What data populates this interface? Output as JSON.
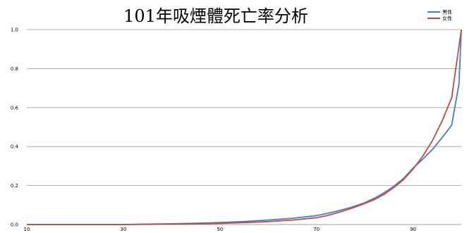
{
  "chart_data": {
    "type": "line",
    "title": "101年吸煙體死亡率分析",
    "xlabel": "",
    "ylabel": "",
    "xlim": [
      10,
      100
    ],
    "ylim": [
      0,
      1.0
    ],
    "x_ticks": [
      10,
      30,
      50,
      70,
      90
    ],
    "x_tick_labels": [
      "10",
      "30",
      "50",
      "70",
      "90"
    ],
    "y_ticks": [
      0,
      0.2,
      0.4,
      0.6,
      0.8,
      1.0
    ],
    "y_tick_labels": [
      "0.0",
      "0.2",
      "0.4",
      "0.6",
      "0.8",
      "1.0"
    ],
    "grid": "horizontal",
    "legend_position": "top-right",
    "series": [
      {
        "name": "男性",
        "color": "#4a7ebb",
        "x": [
          10,
          20,
          30,
          35,
          40,
          45,
          50,
          55,
          60,
          65,
          70,
          72,
          74,
          76,
          78,
          80,
          82,
          84,
          86,
          88,
          90,
          92,
          94,
          96,
          98,
          99.5,
          100
        ],
        "y": [
          0,
          0,
          0,
          0.002,
          0.004,
          0.007,
          0.01,
          0.016,
          0.023,
          0.032,
          0.046,
          0.056,
          0.067,
          0.08,
          0.095,
          0.112,
          0.135,
          0.163,
          0.196,
          0.236,
          0.29,
          0.335,
          0.385,
          0.445,
          0.51,
          0.72,
          1.0
        ]
      },
      {
        "name": "女性",
        "color": "#be4b48",
        "x": [
          10,
          20,
          30,
          35,
          40,
          45,
          50,
          55,
          60,
          65,
          70,
          72,
          74,
          76,
          78,
          80,
          82,
          84,
          86,
          88,
          90,
          92,
          94,
          96,
          98,
          100
        ],
        "y": [
          0,
          0,
          0,
          0.001,
          0.002,
          0.004,
          0.006,
          0.01,
          0.015,
          0.023,
          0.035,
          0.045,
          0.058,
          0.073,
          0.09,
          0.108,
          0.128,
          0.155,
          0.19,
          0.23,
          0.285,
          0.35,
          0.43,
          0.53,
          0.65,
          1.0
        ]
      }
    ]
  }
}
